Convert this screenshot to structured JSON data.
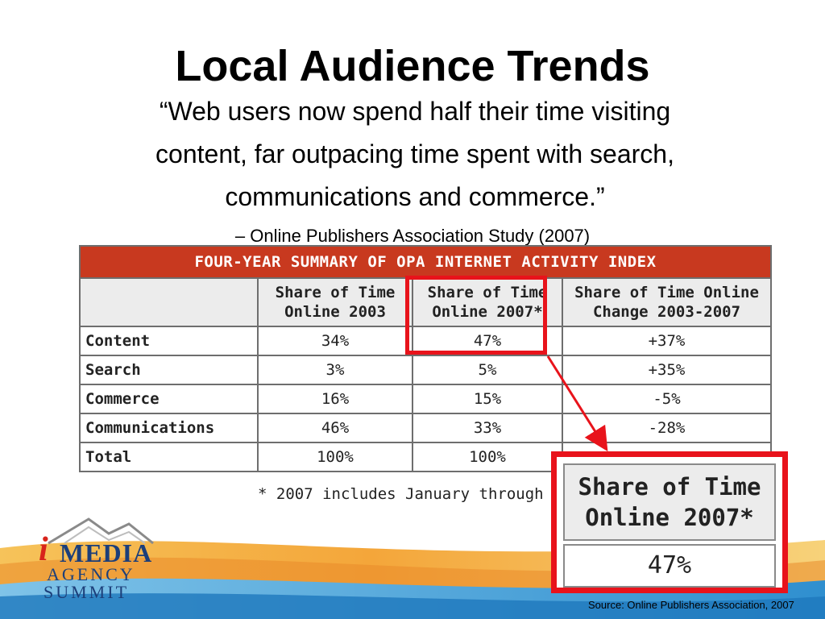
{
  "slide": {
    "title": "Local Audience Trends",
    "quote_lines": [
      "“Web users now spend half their time visiting",
      "content, far outpacing time spent with search,",
      "communications and commerce.”"
    ],
    "attribution": "– Online Publishers Association Study (2007)",
    "source": "Source:  Online Publishers Association, 2007"
  },
  "table": {
    "caption": "FOUR-YEAR SUMMARY OF OPA INTERNET ACTIVITY INDEX",
    "columns": [
      "",
      "Share of Time Online 2003",
      "Share of Time Online 2007*",
      "Share of Time Online Change 2003-2007"
    ],
    "column_lines": [
      [
        "",
        ""
      ],
      [
        "Share of Time",
        "Online 2003"
      ],
      [
        "Share of Time",
        "Online 2007*"
      ],
      [
        "Share of Time Online",
        "Change 2003-2007"
      ]
    ],
    "rows": [
      {
        "label": "Content",
        "v2003": "34%",
        "v2007": "47%",
        "change": "+37%"
      },
      {
        "label": "Search",
        "v2003": "3%",
        "v2007": "5%",
        "change": "+35%"
      },
      {
        "label": "Commerce",
        "v2003": "16%",
        "v2007": "15%",
        "change": "-5%"
      },
      {
        "label": "Communications",
        "v2003": "46%",
        "v2007": "33%",
        "change": "-28%"
      },
      {
        "label": "Total",
        "v2003": "100%",
        "v2007": "100%",
        "change": ""
      }
    ],
    "footnote": "* 2007 includes January through"
  },
  "callout": {
    "header_lines": [
      "Share of Time",
      "Online 2007*"
    ],
    "value": "47%"
  },
  "logo": {
    "i": "i",
    "media": "MEDIA",
    "agency": "AGENCY",
    "summit": "SUMMIT"
  },
  "colors": {
    "caption_bg": "#c8391f",
    "highlight": "#e8131b",
    "logo_blue": "#1c3f7a",
    "logo_red": "#d8241c"
  }
}
